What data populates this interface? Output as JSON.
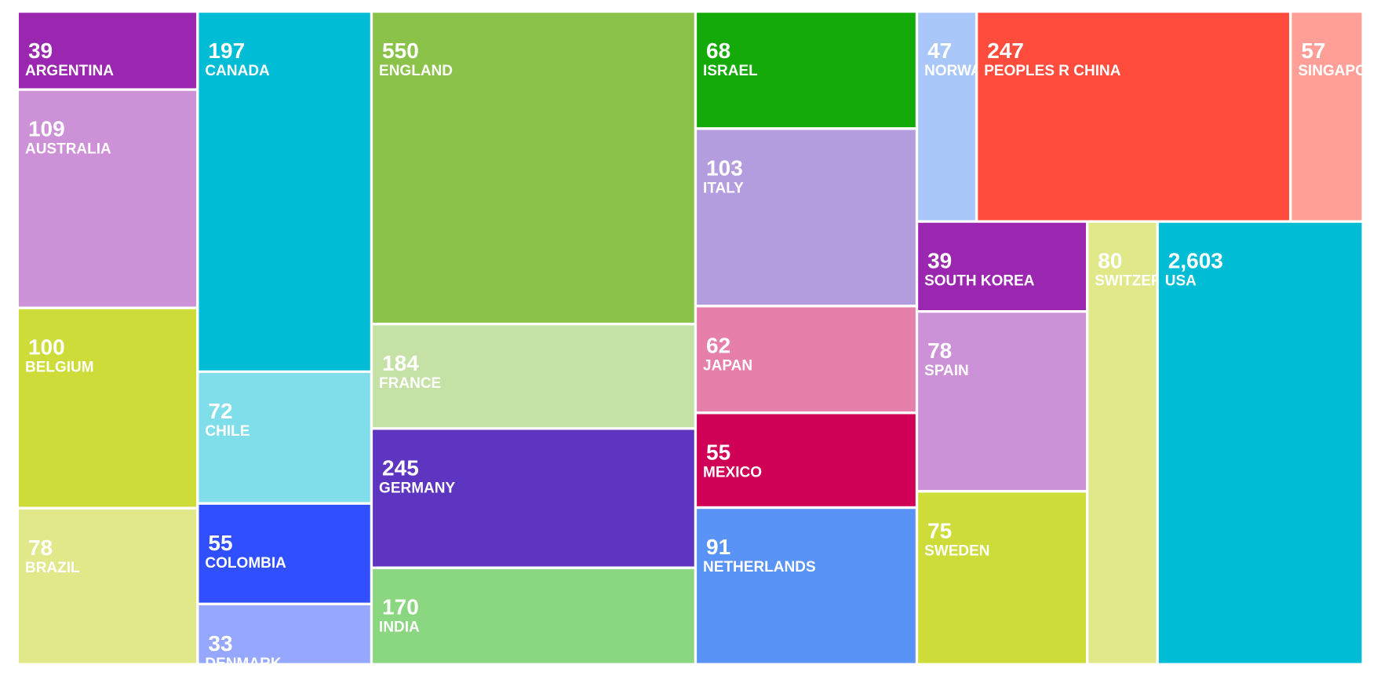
{
  "chart_data": {
    "type": "treemap",
    "categories": [
      "ARGENTINA",
      "AUSTRALIA",
      "BELGIUM",
      "BRAZIL",
      "CANADA",
      "CHILE",
      "COLOMBIA",
      "DENMARK",
      "ENGLAND",
      "FRANCE",
      "GERMANY",
      "INDIA",
      "ISRAEL",
      "ITALY",
      "JAPAN",
      "MEXICO",
      "NETHERLANDS",
      "NORWAY",
      "PEOPLES R CHINA",
      "SINGAPORE",
      "SOUTH KOREA",
      "SPAIN",
      "SWEDEN",
      "SWITZERLAND",
      "USA"
    ],
    "values": [
      39,
      109,
      100,
      78,
      197,
      72,
      55,
      33,
      550,
      184,
      245,
      170,
      68,
      103,
      62,
      55,
      91,
      47,
      247,
      57,
      39,
      78,
      75,
      80,
      2603
    ],
    "value_labels": [
      "39",
      "109",
      "100",
      "78",
      "197",
      "72",
      "55",
      "33",
      "550",
      "184",
      "245",
      "170",
      "68",
      "103",
      "62",
      "55",
      "91",
      "47",
      "247",
      "57",
      "39",
      "78",
      "75",
      "80",
      "2,603"
    ],
    "colors": [
      "#9b27b0",
      "#cc91d6",
      "#cddc39",
      "#e1e88a",
      "#00bcd4",
      "#80deea",
      "#304ffe",
      "#95a7ff",
      "#8bc34a",
      "#c5e1a5",
      "#5e35c1",
      "#8bd680",
      "#14aa0a",
      "#b39ddf",
      "#e77fab",
      "#d10057",
      "#5893f5",
      "#aac7f9",
      "#ff4c3d",
      "#ff9f97",
      "#9b27b0",
      "#cc91d6",
      "#cddc39",
      "#e1e88a",
      "#00bcd4"
    ]
  }
}
